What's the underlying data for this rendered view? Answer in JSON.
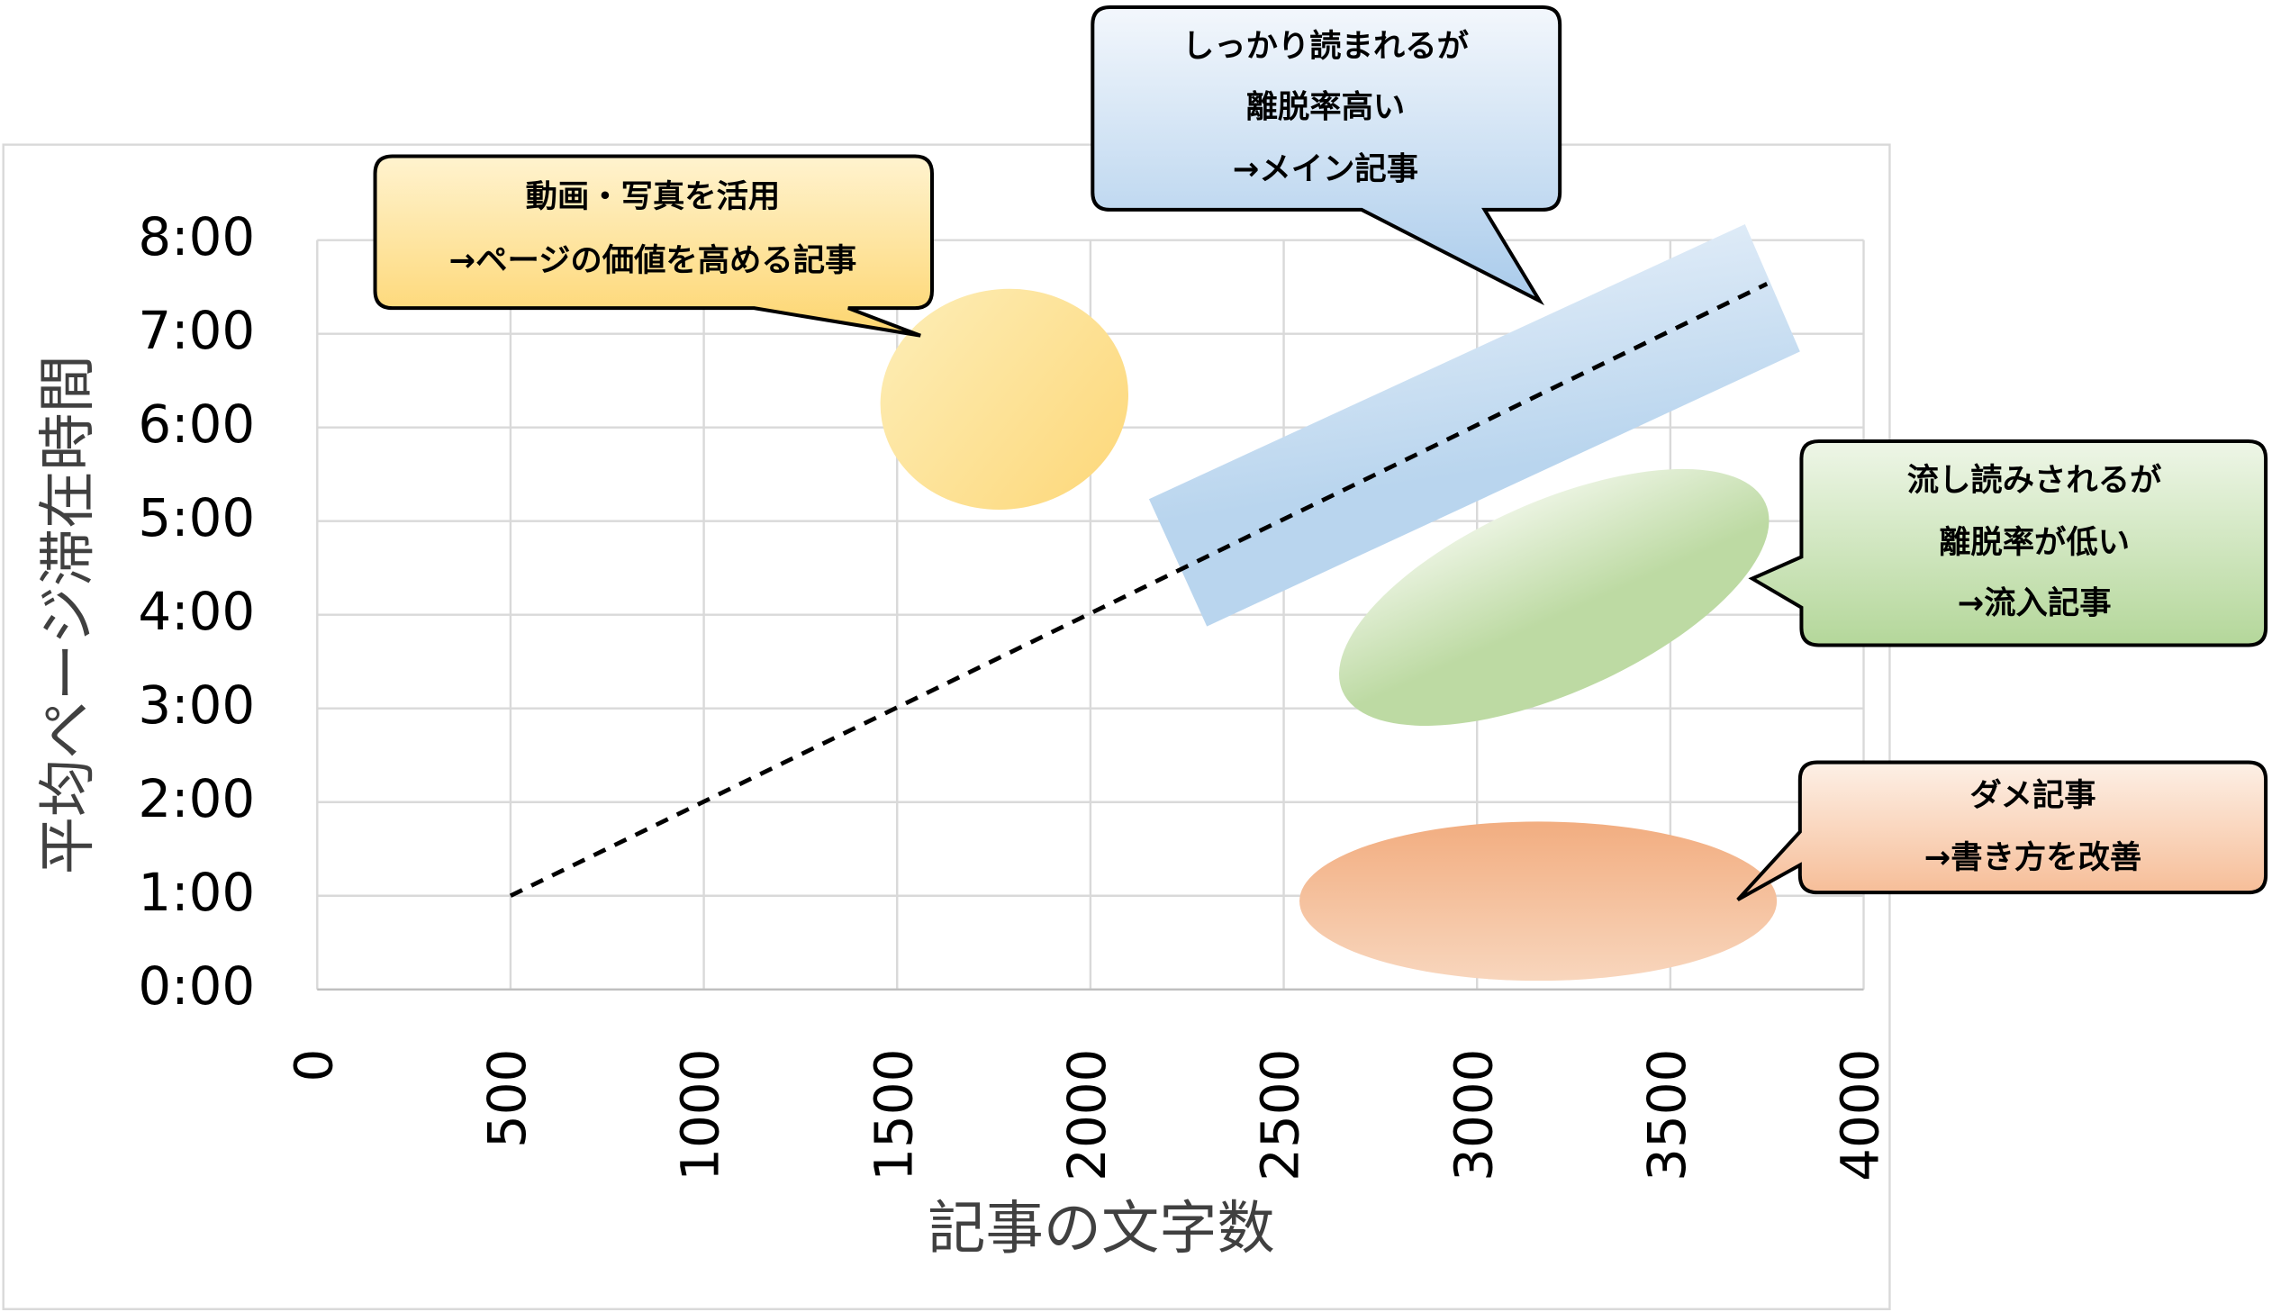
{
  "chart_data": {
    "type": "line",
    "x_label": "記事の文字数",
    "y_label": "平均ページ滞在時間",
    "x": [
      500,
      3750
    ],
    "series": [
      {
        "color": "#000000",
        "values": [
          60,
          452
        ]
      }
    ],
    "xlim": [
      0,
      4000
    ],
    "xticks": [
      0,
      500,
      1000,
      1500,
      2000,
      2500,
      3000,
      3500,
      4000
    ],
    "ylim": [
      0,
      480
    ],
    "yticks": [
      {
        "value": 0,
        "label": "0:00"
      },
      {
        "value": 60,
        "label": "1:00"
      },
      {
        "value": 120,
        "label": "2:00"
      },
      {
        "value": 180,
        "label": "3:00"
      },
      {
        "value": 240,
        "label": "4:00"
      },
      {
        "value": 300,
        "label": "5:00"
      },
      {
        "value": 360,
        "label": "6:00"
      },
      {
        "value": 420,
        "label": "7:00"
      },
      {
        "value": 480,
        "label": "8:00"
      }
    ],
    "grid": true,
    "annotations": [
      {
        "lines": [
          "動画・写真を活用",
          "→ページの価値を高める記事"
        ]
      },
      {
        "lines": [
          "しっかり読まれるが",
          "離脱率高い",
          "→メイン記事"
        ]
      },
      {
        "lines": [
          "流し読みされるが",
          "離脱率が低い",
          "→流入記事"
        ]
      },
      {
        "lines": [
          "ダメ記事",
          "→書き方を改善"
        ]
      }
    ]
  }
}
